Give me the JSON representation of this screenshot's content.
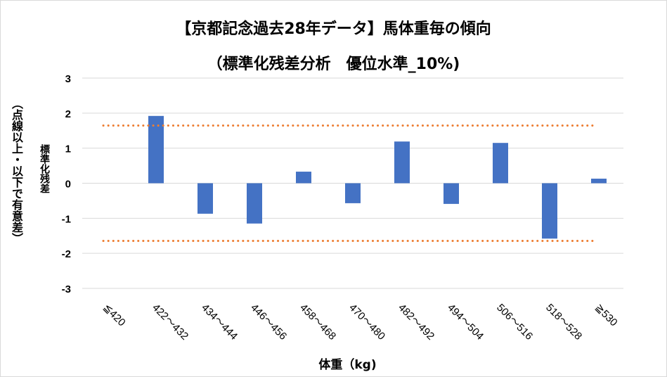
{
  "chart_data": {
    "type": "bar",
    "title": "【京都記念過去28年データ】馬体重毎の傾向",
    "subtitle": "（標準化残差分析　優位水準_10%)",
    "xlabel": "体重（kg)",
    "ylabel": "標準化残差",
    "ylabel2": "（点線以上・以下で有意差）",
    "categories": [
      "≦420",
      "422～432",
      "434～444",
      "446～456",
      "458～468",
      "470～480",
      "482～492",
      "494～504",
      "506～516",
      "518～528",
      "≧530"
    ],
    "values": [
      0,
      1.92,
      -0.87,
      -1.15,
      0.33,
      -0.57,
      1.19,
      -0.59,
      1.15,
      -1.58,
      0.13
    ],
    "ylim": [
      -3,
      3
    ],
    "yticks": [
      3,
      2,
      1,
      0,
      -1,
      -2,
      -3
    ],
    "thresholds": [
      1.645,
      -1.645
    ],
    "grid": true,
    "colors": {
      "bar": "#4472c4",
      "threshold": "#ed7d31",
      "grid": "#d9d9d9"
    }
  }
}
